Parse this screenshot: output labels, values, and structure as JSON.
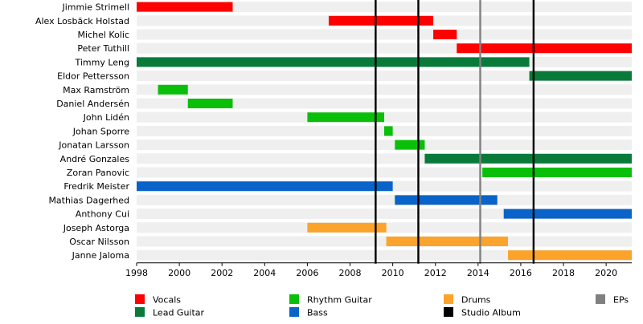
{
  "chart_data": {
    "type": "timeline",
    "title": "",
    "xlabel": "",
    "ylabel": "",
    "xlim": [
      1998,
      2021.2
    ],
    "x_ticks": [
      1998,
      2000,
      2002,
      2004,
      2006,
      2008,
      2010,
      2012,
      2014,
      2016,
      2018,
      2020
    ],
    "grid": "alternating row bands",
    "members": [
      "Jimmie Strimell",
      "Alex Losbäck Holstad",
      "Michel Kolic",
      "Peter Tuthill",
      "Timmy Leng",
      "Eldor Pettersson",
      "Max Ramström",
      "Daniel Andersén",
      "John Lidén",
      "Johan Sporre",
      "Jonatan Larsson",
      "André Gonzales",
      "Zoran Panovic",
      "Fredrik Meister",
      "Mathias Dagerhed",
      "Anthony Cui",
      "Joseph Astorga",
      "Oscar Nilsson",
      "Janne Jaloma"
    ],
    "roles": [
      {
        "name": "Vocals",
        "color": "#ff0000"
      },
      {
        "name": "Lead Guitar",
        "color": "#0a7a3a"
      },
      {
        "name": "Rhythm Guitar",
        "color": "#0abf0a"
      },
      {
        "name": "Bass",
        "color": "#0a63c8"
      },
      {
        "name": "Drums",
        "color": "#fba32a"
      },
      {
        "name": "Studio Album",
        "color": "#000000"
      },
      {
        "name": "EPs",
        "color": "#808080"
      }
    ],
    "bars": [
      {
        "member": "Jimmie Strimell",
        "role": "Vocals",
        "start": 1998.0,
        "end": 2002.5
      },
      {
        "member": "Alex Losbäck Holstad",
        "role": "Vocals",
        "start": 2007.0,
        "end": 2011.9
      },
      {
        "member": "Michel Kolic",
        "role": "Vocals",
        "start": 2011.9,
        "end": 2013.0
      },
      {
        "member": "Peter Tuthill",
        "role": "Vocals",
        "start": 2013.0,
        "end": 2021.2
      },
      {
        "member": "Timmy Leng",
        "role": "Lead Guitar",
        "start": 1998.0,
        "end": 2016.4
      },
      {
        "member": "Eldor Pettersson",
        "role": "Lead Guitar",
        "start": 2016.4,
        "end": 2021.2
      },
      {
        "member": "Max Ramström",
        "role": "Rhythm Guitar",
        "start": 1999.0,
        "end": 2000.4
      },
      {
        "member": "Daniel Andersén",
        "role": "Rhythm Guitar",
        "start": 2000.4,
        "end": 2002.5
      },
      {
        "member": "John Lidén",
        "role": "Rhythm Guitar",
        "start": 2006.0,
        "end": 2009.6
      },
      {
        "member": "Johan Sporre",
        "role": "Rhythm Guitar",
        "start": 2009.6,
        "end": 2010.0
      },
      {
        "member": "Jonatan Larsson",
        "role": "Rhythm Guitar",
        "start": 2010.1,
        "end": 2011.5
      },
      {
        "member": "André Gonzales",
        "role": "Lead Guitar",
        "start": 2011.5,
        "end": 2021.2
      },
      {
        "member": "Zoran Panovic",
        "role": "Rhythm Guitar",
        "start": 2014.2,
        "end": 2021.2
      },
      {
        "member": "Fredrik Meister",
        "role": "Bass",
        "start": 1998.0,
        "end": 2010.0
      },
      {
        "member": "Mathias Dagerhed",
        "role": "Bass",
        "start": 2010.1,
        "end": 2014.9
      },
      {
        "member": "Anthony Cui",
        "role": "Bass",
        "start": 2015.2,
        "end": 2021.2
      },
      {
        "member": "Joseph Astorga",
        "role": "Drums",
        "start": 2006.0,
        "end": 2009.7
      },
      {
        "member": "Oscar Nilsson",
        "role": "Drums",
        "start": 2009.7,
        "end": 2015.4
      },
      {
        "member": "Janne Jaloma",
        "role": "Drums",
        "start": 2015.4,
        "end": 2021.2
      }
    ],
    "events": [
      {
        "type": "Studio Album",
        "x": 2009.2
      },
      {
        "type": "Studio Album",
        "x": 2011.2
      },
      {
        "type": "EPs",
        "x": 2014.1
      },
      {
        "type": "Studio Album",
        "x": 2016.6
      }
    ],
    "legend_placement": "bottom",
    "legend_order": [
      "Vocals",
      "Rhythm Guitar",
      "Drums",
      "EPs",
      "Lead Guitar",
      "Bass",
      "Studio Album"
    ]
  }
}
